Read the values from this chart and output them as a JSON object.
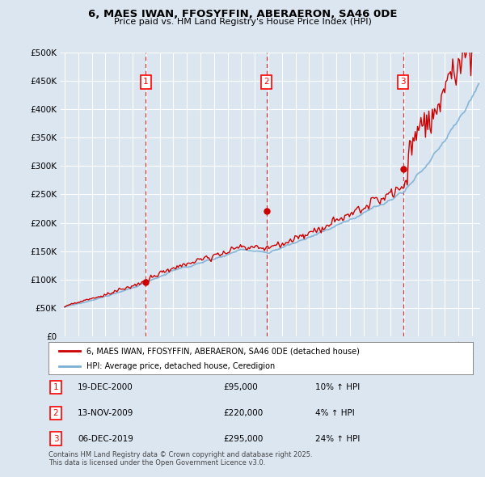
{
  "title1": "6, MAES IWAN, FFOSYFFIN, ABERAERON, SA46 0DE",
  "title2": "Price paid vs. HM Land Registry's House Price Index (HPI)",
  "bg_color": "#dce6f1",
  "grid_color": "#ffffff",
  "hpi_color": "#7bafd4",
  "price_color": "#cc0000",
  "ylim": [
    0,
    500000
  ],
  "yticks": [
    0,
    50000,
    100000,
    150000,
    200000,
    250000,
    300000,
    350000,
    400000,
    450000,
    500000
  ],
  "transaction_dates": [
    2000.97,
    2009.87,
    2019.93
  ],
  "transaction_values": [
    95000,
    220000,
    295000
  ],
  "transaction_labels": [
    "1",
    "2",
    "3"
  ],
  "legend_price_label": "6, MAES IWAN, FFOSYFFIN, ABERAERON, SA46 0DE (detached house)",
  "legend_hpi_label": "HPI: Average price, detached house, Ceredigion",
  "table_rows": [
    {
      "num": "1",
      "date": "19-DEC-2000",
      "price": "£95,000",
      "change": "10% ↑ HPI"
    },
    {
      "num": "2",
      "date": "13-NOV-2009",
      "price": "£220,000",
      "change": "4% ↑ HPI"
    },
    {
      "num": "3",
      "date": "06-DEC-2019",
      "price": "£295,000",
      "change": "24% ↑ HPI"
    }
  ],
  "footer_text": "Contains HM Land Registry data © Crown copyright and database right 2025.\nThis data is licensed under the Open Government Licence v3.0."
}
